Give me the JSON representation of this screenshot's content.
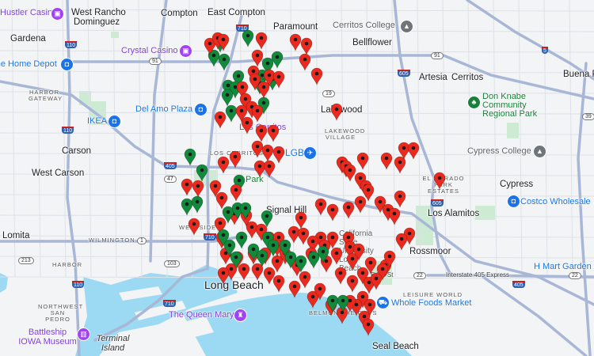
{
  "map": {
    "marker_colors": {
      "red": "#ea2a1e",
      "green": "#128a3b",
      "dot": "#1a1a1a"
    },
    "colors": {
      "land": "#f3f4f6",
      "water": "#9cd9f2",
      "freeway": "#a9b7d6",
      "park": "#cdebd3"
    },
    "places": {
      "hustler_casino": "Hustler Casino",
      "west_rancho": "West Rancho",
      "dominguez": "Dominguez",
      "compton": "Compton",
      "east_compton": "East Compton",
      "paramount": "Paramount",
      "cerritos_college": "Cerritos College",
      "bellflower": "Bellflower",
      "artesia": "Artesia",
      "cerritos": "Cerritos",
      "buena_park": "Buena Park",
      "gardena": "Gardena",
      "home_depot": "The Home Depot",
      "crystal_casino": "Crystal Casino",
      "harbor_gateway": "HARBOR GATEWAY",
      "del_amo": "Del Amo Plaza",
      "ikea": "IKEA",
      "los_cerritos_center": "Los Cerritos",
      "lakewood": "Lakewood",
      "lakewood_village": "LAKEWOOD VILLAGE",
      "don_knabe": "Don Knabe Community Regional Park",
      "carson": "Carson",
      "cypress_college": "Cypress College",
      "west_carson": "West Carson",
      "los_cerritos": "LOS CERRITOS",
      "lgb": "LGB",
      "el_dorado": "EL DORADO PARK ESTATES",
      "cypress": "Cypress",
      "costco": "Costco Wholesale",
      "los_alamitos": "Los Alamitos",
      "signal_hill": "Signal Hill",
      "park": "Park",
      "lomita": "Lomita",
      "wilmington": "WILMINGTON",
      "westside": "WESTSIDE",
      "harbor": "HARBOR",
      "rossmoor": "Rossmoor",
      "hmart": "H Mart Garden Grove",
      "csulb": "California State University Long Beach",
      "long_beach": "Long Beach",
      "i405_express": "Interstate 405 Express",
      "e7th": "E 7th St",
      "leisure_world": "LEISURE WORLD",
      "whole_foods": "Whole Foods Market",
      "nw_san_pedro": "NORTHWEST SAN PEDRO",
      "queen_mary": "The Queen Mary",
      "battleship": "Battleship IOWA Museum",
      "terminal_island": "Terminal Island",
      "belmont": "BELMONT HEIGHTS",
      "seal_beach": "Seal Beach"
    },
    "shields": {
      "i110": "110",
      "i710": "710",
      "i405": "405",
      "i605": "605",
      "i5": "5",
      "r91": "91",
      "r19": "19",
      "r1": "1",
      "r213": "213",
      "r103": "103",
      "r22": "22",
      "r47": "47",
      "r39": "39"
    }
  }
}
